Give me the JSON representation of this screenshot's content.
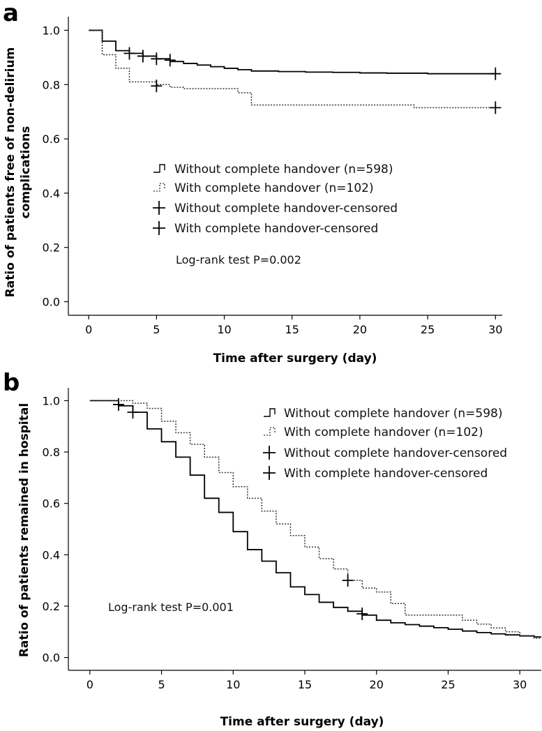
{
  "chart_data": [
    {
      "panel": "a",
      "type": "line",
      "subtype": "kaplan-meier",
      "xlabel": "Time after surgery (day)",
      "ylabel": "Ratio of patients free of non-delirium complications",
      "ylabel_lines": [
        "Ratio of patients free of non-delirium",
        "complications"
      ],
      "xlim": [
        -1.5,
        30.5
      ],
      "ylim": [
        -0.05,
        1.05
      ],
      "xticks": [
        0,
        5,
        10,
        15,
        20,
        25,
        30
      ],
      "yticks": [
        0.0,
        0.2,
        0.4,
        0.6,
        0.8,
        1.0
      ],
      "ytick_labels": [
        "0.0",
        "0.2",
        "0.4",
        "0.6",
        "0.8",
        "1.0"
      ],
      "annotation": "Log-rank test P=0.002",
      "legend": [
        {
          "label": "Without complete handover (n=598)",
          "marker": "solid-step"
        },
        {
          "label": "With complete handover (n=102)",
          "marker": "dotted-step"
        },
        {
          "label": "Without complete handover-censored",
          "marker": "plus"
        },
        {
          "label": "With complete handover-censored",
          "marker": "plus"
        }
      ],
      "series": [
        {
          "name": "Without complete handover (n=598)",
          "style": "solid",
          "x": [
            0,
            1,
            2,
            3,
            4,
            5,
            6,
            7,
            8,
            9,
            10,
            11,
            12,
            14,
            16,
            18,
            20,
            22,
            25,
            30
          ],
          "y": [
            1.0,
            0.96,
            0.925,
            0.915,
            0.905,
            0.895,
            0.885,
            0.878,
            0.872,
            0.866,
            0.86,
            0.855,
            0.85,
            0.848,
            0.846,
            0.845,
            0.843,
            0.842,
            0.84,
            0.84
          ],
          "censored": [
            {
              "x": 3,
              "y": 0.915
            },
            {
              "x": 4,
              "y": 0.905
            },
            {
              "x": 5,
              "y": 0.895
            },
            {
              "x": 6,
              "y": 0.89
            },
            {
              "x": 30,
              "y": 0.84
            }
          ]
        },
        {
          "name": "With complete handover (n=102)",
          "style": "dotted",
          "x": [
            0,
            1,
            2,
            3,
            5,
            6,
            7,
            11,
            12,
            24,
            30
          ],
          "y": [
            1.0,
            0.91,
            0.86,
            0.81,
            0.8,
            0.79,
            0.785,
            0.77,
            0.725,
            0.715,
            0.715
          ],
          "censored": [
            {
              "x": 5,
              "y": 0.795
            },
            {
              "x": 30,
              "y": 0.715
            }
          ]
        }
      ]
    },
    {
      "panel": "b",
      "type": "line",
      "subtype": "kaplan-meier",
      "xlabel": "Time after surgery (day)",
      "ylabel": "Ratio of patients remained in hospital",
      "ylabel_lines": [
        "Ratio of patients remained in hospital"
      ],
      "xlim": [
        -1.5,
        31.5
      ],
      "ylim": [
        -0.05,
        1.05
      ],
      "xticks": [
        0,
        5,
        10,
        15,
        20,
        25,
        30
      ],
      "yticks": [
        0.0,
        0.2,
        0.4,
        0.6,
        0.8,
        1.0
      ],
      "ytick_labels": [
        "0.0",
        "0.2",
        "0.4",
        "0.6",
        "0.8",
        "1.0"
      ],
      "annotation": "Log-rank test P=0.001",
      "legend": [
        {
          "label": "Without complete handover (n=598)",
          "marker": "solid-step"
        },
        {
          "label": "With complete handover (n=102)",
          "marker": "dotted-step"
        },
        {
          "label": "Without complete handover-censored",
          "marker": "plus"
        },
        {
          "label": "With complete handover-censored",
          "marker": "plus"
        }
      ],
      "series": [
        {
          "name": "Without complete handover (n=598)",
          "style": "solid",
          "x": [
            0,
            2,
            3,
            4,
            5,
            6,
            7,
            8,
            9,
            10,
            11,
            12,
            13,
            14,
            15,
            16,
            17,
            18,
            19,
            20,
            21,
            22,
            23,
            24,
            25,
            26,
            27,
            28,
            29,
            30,
            31,
            31.5
          ],
          "y": [
            1.0,
            0.98,
            0.955,
            0.89,
            0.84,
            0.78,
            0.71,
            0.62,
            0.565,
            0.49,
            0.42,
            0.375,
            0.33,
            0.275,
            0.245,
            0.215,
            0.195,
            0.18,
            0.165,
            0.145,
            0.135,
            0.128,
            0.122,
            0.116,
            0.11,
            0.103,
            0.097,
            0.092,
            0.088,
            0.084,
            0.08,
            0.08
          ],
          "censored": [
            {
              "x": 2,
              "y": 0.985
            },
            {
              "x": 3,
              "y": 0.955
            },
            {
              "x": 19,
              "y": 0.17
            }
          ]
        },
        {
          "name": "With complete handover (n=102)",
          "style": "dotted",
          "x": [
            0,
            3,
            4,
            5,
            6,
            7,
            8,
            9,
            10,
            11,
            12,
            13,
            14,
            15,
            16,
            17,
            18,
            19,
            20,
            21,
            22,
            23,
            24,
            25,
            26,
            27,
            28,
            29,
            30,
            31,
            31.5
          ],
          "y": [
            1.0,
            0.99,
            0.97,
            0.92,
            0.875,
            0.83,
            0.78,
            0.72,
            0.665,
            0.62,
            0.57,
            0.52,
            0.475,
            0.43,
            0.385,
            0.345,
            0.3,
            0.27,
            0.255,
            0.21,
            0.165,
            0.165,
            0.165,
            0.165,
            0.145,
            0.13,
            0.115,
            0.1,
            0.085,
            0.075,
            0.075
          ],
          "censored": [
            {
              "x": 18,
              "y": 0.3
            }
          ]
        }
      ]
    }
  ]
}
